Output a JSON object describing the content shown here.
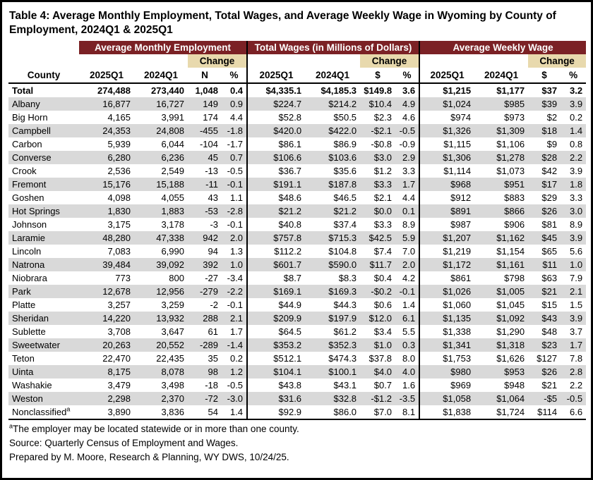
{
  "title": "Table 4: Average Monthly Employment, Total Wages, and Average Weekly Wage in Wyoming by County of Employment, 2024Q1 & 2025Q1",
  "colors": {
    "group_band": "#7b2125",
    "change_band": "#e8d9ad",
    "row_stripe": "#d9d9d9",
    "border": "#000000",
    "band_text": "#ffffff"
  },
  "table": {
    "groups": [
      {
        "label": "Average Monthly Employment"
      },
      {
        "label": "Total Wages (in Millions of Dollars)"
      },
      {
        "label": "Average Weekly Wage"
      }
    ],
    "change_label": "Change",
    "subheaders": {
      "county": "County",
      "q2025": "2025Q1",
      "q2024": "2024Q1",
      "n": "N",
      "pct": "%",
      "dollar": "$"
    },
    "rows": [
      {
        "county": "Total",
        "values": [
          "274,488",
          "273,440",
          "1,048",
          "0.4",
          "$4,335.1",
          "$4,185.3",
          "$149.8",
          "3.6",
          "$1,215",
          "$1,177",
          "$37",
          "3.2"
        ]
      },
      {
        "county": "Albany",
        "values": [
          "16,877",
          "16,727",
          "149",
          "0.9",
          "$224.7",
          "$214.2",
          "$10.4",
          "4.9",
          "$1,024",
          "$985",
          "$39",
          "3.9"
        ]
      },
      {
        "county": "Big Horn",
        "values": [
          "4,165",
          "3,991",
          "174",
          "4.4",
          "$52.8",
          "$50.5",
          "$2.3",
          "4.6",
          "$974",
          "$973",
          "$2",
          "0.2"
        ]
      },
      {
        "county": "Campbell",
        "values": [
          "24,353",
          "24,808",
          "-455",
          "-1.8",
          "$420.0",
          "$422.0",
          "-$2.1",
          "-0.5",
          "$1,326",
          "$1,309",
          "$18",
          "1.4"
        ]
      },
      {
        "county": "Carbon",
        "values": [
          "5,939",
          "6,044",
          "-104",
          "-1.7",
          "$86.1",
          "$86.9",
          "-$0.8",
          "-0.9",
          "$1,115",
          "$1,106",
          "$9",
          "0.8"
        ]
      },
      {
        "county": "Converse",
        "values": [
          "6,280",
          "6,236",
          "45",
          "0.7",
          "$106.6",
          "$103.6",
          "$3.0",
          "2.9",
          "$1,306",
          "$1,278",
          "$28",
          "2.2"
        ]
      },
      {
        "county": "Crook",
        "values": [
          "2,536",
          "2,549",
          "-13",
          "-0.5",
          "$36.7",
          "$35.6",
          "$1.2",
          "3.3",
          "$1,114",
          "$1,073",
          "$42",
          "3.9"
        ]
      },
      {
        "county": "Fremont",
        "values": [
          "15,176",
          "15,188",
          "-11",
          "-0.1",
          "$191.1",
          "$187.8",
          "$3.3",
          "1.7",
          "$968",
          "$951",
          "$17",
          "1.8"
        ]
      },
      {
        "county": "Goshen",
        "values": [
          "4,098",
          "4,055",
          "43",
          "1.1",
          "$48.6",
          "$46.5",
          "$2.1",
          "4.4",
          "$912",
          "$883",
          "$29",
          "3.3"
        ]
      },
      {
        "county": "Hot Springs",
        "values": [
          "1,830",
          "1,883",
          "-53",
          "-2.8",
          "$21.2",
          "$21.2",
          "$0.0",
          "0.1",
          "$891",
          "$866",
          "$26",
          "3.0"
        ]
      },
      {
        "county": "Johnson",
        "values": [
          "3,175",
          "3,178",
          "-3",
          "-0.1",
          "$40.8",
          "$37.4",
          "$3.3",
          "8.9",
          "$987",
          "$906",
          "$81",
          "8.9"
        ]
      },
      {
        "county": "Laramie",
        "values": [
          "48,280",
          "47,338",
          "942",
          "2.0",
          "$757.8",
          "$715.3",
          "$42.5",
          "5.9",
          "$1,207",
          "$1,162",
          "$45",
          "3.9"
        ]
      },
      {
        "county": "Lincoln",
        "values": [
          "7,083",
          "6,990",
          "94",
          "1.3",
          "$112.2",
          "$104.8",
          "$7.4",
          "7.0",
          "$1,219",
          "$1,154",
          "$65",
          "5.6"
        ]
      },
      {
        "county": "Natrona",
        "values": [
          "39,484",
          "39,092",
          "392",
          "1.0",
          "$601.7",
          "$590.0",
          "$11.7",
          "2.0",
          "$1,172",
          "$1,161",
          "$11",
          "1.0"
        ]
      },
      {
        "county": "Niobrara",
        "values": [
          "773",
          "800",
          "-27",
          "-3.4",
          "$8.7",
          "$8.3",
          "$0.4",
          "4.2",
          "$861",
          "$798",
          "$63",
          "7.9"
        ]
      },
      {
        "county": "Park",
        "values": [
          "12,678",
          "12,956",
          "-279",
          "-2.2",
          "$169.1",
          "$169.3",
          "-$0.2",
          "-0.1",
          "$1,026",
          "$1,005",
          "$21",
          "2.1"
        ]
      },
      {
        "county": "Platte",
        "values": [
          "3,257",
          "3,259",
          "-2",
          "-0.1",
          "$44.9",
          "$44.3",
          "$0.6",
          "1.4",
          "$1,060",
          "$1,045",
          "$15",
          "1.5"
        ]
      },
      {
        "county": "Sheridan",
        "values": [
          "14,220",
          "13,932",
          "288",
          "2.1",
          "$209.9",
          "$197.9",
          "$12.0",
          "6.1",
          "$1,135",
          "$1,092",
          "$43",
          "3.9"
        ]
      },
      {
        "county": "Sublette",
        "values": [
          "3,708",
          "3,647",
          "61",
          "1.7",
          "$64.5",
          "$61.2",
          "$3.4",
          "5.5",
          "$1,338",
          "$1,290",
          "$48",
          "3.7"
        ]
      },
      {
        "county": "Sweetwater",
        "values": [
          "20,263",
          "20,552",
          "-289",
          "-1.4",
          "$353.2",
          "$352.3",
          "$1.0",
          "0.3",
          "$1,341",
          "$1,318",
          "$23",
          "1.7"
        ]
      },
      {
        "county": "Teton",
        "values": [
          "22,470",
          "22,435",
          "35",
          "0.2",
          "$512.1",
          "$474.3",
          "$37.8",
          "8.0",
          "$1,753",
          "$1,626",
          "$127",
          "7.8"
        ]
      },
      {
        "county": "Uinta",
        "values": [
          "8,175",
          "8,078",
          "98",
          "1.2",
          "$104.1",
          "$100.1",
          "$4.0",
          "4.0",
          "$980",
          "$953",
          "$26",
          "2.8"
        ]
      },
      {
        "county": "Washakie",
        "values": [
          "3,479",
          "3,498",
          "-18",
          "-0.5",
          "$43.8",
          "$43.1",
          "$0.7",
          "1.6",
          "$969",
          "$948",
          "$21",
          "2.2"
        ]
      },
      {
        "county": "Weston",
        "values": [
          "2,298",
          "2,370",
          "-72",
          "-3.0",
          "$31.6",
          "$32.8",
          "-$1.2",
          "-3.5",
          "$1,058",
          "$1,064",
          "-$5",
          "-0.5"
        ]
      },
      {
        "county": "Nonclassified",
        "county_sup": "a",
        "values": [
          "3,890",
          "3,836",
          "54",
          "1.4",
          "$92.9",
          "$86.0",
          "$7.0",
          "8.1",
          "$1,838",
          "$1,724",
          "$114",
          "6.6"
        ]
      }
    ]
  },
  "footnotes": {
    "marker": "a",
    "note": "The employer may be located statewide or in more than one county.",
    "source": "Source: Quarterly Census of Employment and Wages.",
    "prepared": "Prepared by M. Moore, Research & Planning, WY DWS, 10/24/25."
  }
}
